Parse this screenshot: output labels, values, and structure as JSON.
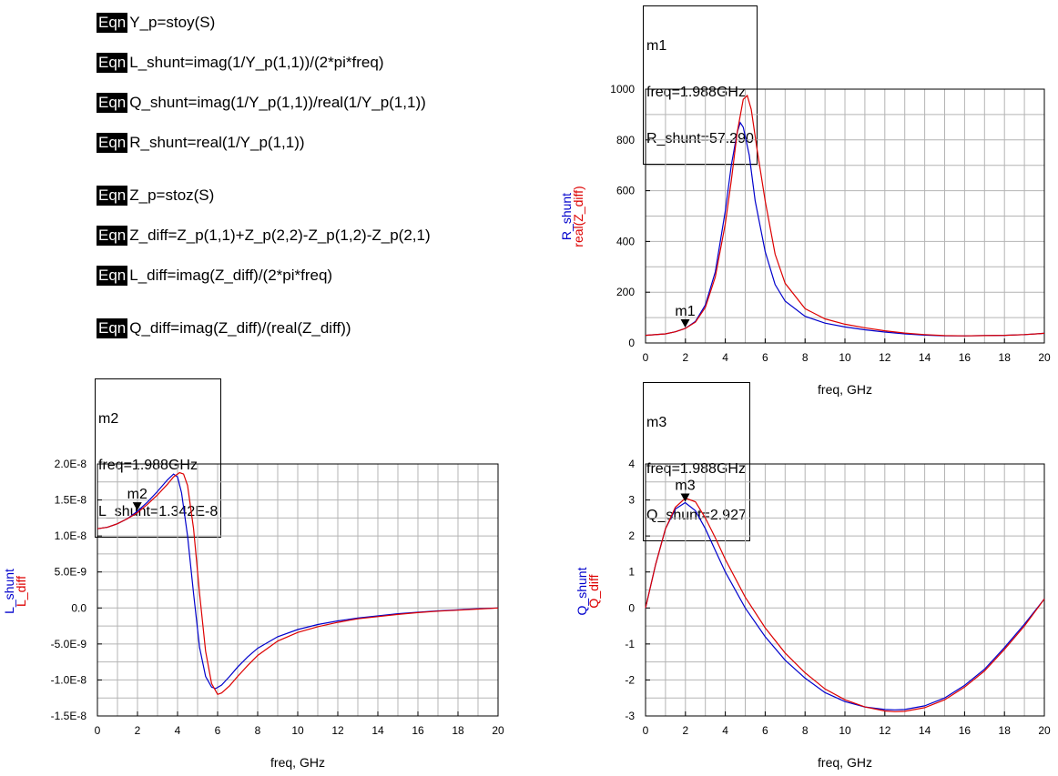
{
  "equations": [
    {
      "tag": "Eqn",
      "text": "Y_p=stoy(S)"
    },
    {
      "tag": "Eqn",
      "text": "L_shunt=imag(1/Y_p(1,1))/(2*pi*freq)"
    },
    {
      "tag": "Eqn",
      "text": "Q_shunt=imag(1/Y_p(1,1))/real(1/Y_p(1,1))"
    },
    {
      "tag": "Eqn",
      "text": "R_shunt=real(1/Y_p(1,1))"
    },
    {
      "tag": "Eqn",
      "text": "Z_p=stoz(S)"
    },
    {
      "tag": "Eqn",
      "text": "Z_diff=Z_p(1,1)+Z_p(2,2)-Z_p(1,2)-Z_p(2,1)"
    },
    {
      "tag": "Eqn",
      "text": "L_diff=imag(Z_diff)/(2*pi*freq)"
    },
    {
      "tag": "Eqn",
      "text": "Q_diff=imag(Z_diff)/(real(Z_diff))"
    }
  ],
  "markers": {
    "m1": {
      "name": "m1",
      "freq": "freq=1.988GHz",
      "value": "R_shunt=57.290"
    },
    "m2": {
      "name": "m2",
      "freq": "freq=1.988GHz",
      "value": "L_shunt=1.342E-8"
    },
    "m3": {
      "name": "m3",
      "freq": "freq=1.988GHz",
      "value": "Q_shunt=2.927"
    }
  },
  "colors": {
    "shunt": "#0000cc",
    "diff": "#dd0000",
    "grid": "#b4b4b4"
  },
  "chart_data": [
    {
      "id": "r",
      "type": "line",
      "xlabel": "freq, GHz",
      "ylabels": [
        "R_shunt",
        "real(Z_diff)"
      ],
      "xlim": [
        0,
        20
      ],
      "ylim": [
        0,
        1000
      ],
      "xticks": [
        0,
        2,
        4,
        6,
        8,
        10,
        12,
        14,
        16,
        18,
        20
      ],
      "yticks": [
        0,
        200,
        400,
        600,
        800,
        1000
      ],
      "ytick_labels": [
        "0",
        "200",
        "400",
        "600",
        "800",
        "1000"
      ],
      "grid": true,
      "marker": {
        "name": "m1",
        "x": 1.988,
        "y": 57.29
      },
      "series": [
        {
          "name": "R_shunt",
          "color": "#0000cc",
          "x": [
            0,
            1,
            1.5,
            1.988,
            2.5,
            3,
            3.5,
            4,
            4.3,
            4.6,
            4.75,
            4.9,
            5.2,
            5.5,
            6,
            6.5,
            7,
            8,
            9,
            10,
            11,
            12,
            13,
            14,
            15,
            16,
            17,
            18,
            19,
            20
          ],
          "y": [
            30,
            36,
            44,
            57,
            85,
            150,
            280,
            520,
            700,
            830,
            868,
            850,
            740,
            560,
            360,
            230,
            165,
            105,
            78,
            63,
            52,
            43,
            36,
            31,
            28,
            28,
            29,
            30,
            33,
            38
          ]
        },
        {
          "name": "real(Z_diff)",
          "color": "#dd0000",
          "x": [
            0,
            1,
            1.5,
            1.988,
            2.5,
            3,
            3.5,
            4,
            4.3,
            4.6,
            4.9,
            5.1,
            5.3,
            5.6,
            6,
            6.5,
            7,
            8,
            9,
            10,
            11,
            12,
            13,
            14,
            15,
            16,
            17,
            18,
            19,
            20
          ],
          "y": [
            30,
            36,
            44,
            57,
            82,
            140,
            260,
            470,
            640,
            830,
            960,
            975,
            920,
            760,
            560,
            350,
            235,
            135,
            95,
            74,
            60,
            48,
            39,
            33,
            29,
            28,
            29,
            30,
            33,
            38
          ]
        }
      ]
    },
    {
      "id": "l",
      "type": "line",
      "xlabel": "freq, GHz",
      "ylabels": [
        "L_shunt",
        "L_diff"
      ],
      "xlim": [
        0,
        20
      ],
      "ylim": [
        -1.5e-08,
        2e-08
      ],
      "xticks": [
        0,
        2,
        4,
        6,
        8,
        10,
        12,
        14,
        16,
        18,
        20
      ],
      "yticks": [
        -1.5e-08,
        -1e-08,
        -5e-09,
        0,
        5e-09,
        1e-08,
        1.5e-08,
        2e-08
      ],
      "ytick_labels": [
        "-1.5E-8",
        "-1.0E-8",
        "-5.0E-9",
        "0.0",
        "5.0E-9",
        "1.0E-8",
        "1.5E-8",
        "2.0E-8"
      ],
      "grid": true,
      "marker": {
        "name": "m2",
        "x": 1.988,
        "y": 1.342e-08
      },
      "series": [
        {
          "name": "L_shunt",
          "color": "#0000cc",
          "x": [
            0,
            0.5,
            1,
            1.5,
            1.988,
            2.5,
            3,
            3.5,
            3.8,
            4.0,
            4.2,
            4.5,
            4.8,
            5.1,
            5.4,
            5.7,
            5.9,
            6.2,
            6.6,
            7,
            7.5,
            8,
            9,
            10,
            11,
            12,
            13,
            14,
            15,
            16,
            17,
            18,
            19,
            20
          ],
          "y": [
            1.1e-08,
            1.12e-08,
            1.17e-08,
            1.24e-08,
            1.342e-08,
            1.47e-08,
            1.62e-08,
            1.78e-08,
            1.86e-08,
            1.82e-08,
            1.6e-08,
            1e-08,
            2e-09,
            -5.5e-09,
            -9.5e-09,
            -1.1e-08,
            -1.12e-08,
            -1.07e-08,
            -9.5e-09,
            -8.2e-09,
            -6.8e-09,
            -5.6e-09,
            -4e-09,
            -3e-09,
            -2.3e-09,
            -1.8e-09,
            -1.4e-09,
            -1.1e-09,
            -8e-10,
            -6e-10,
            -4e-10,
            -2.5e-10,
            -1e-10,
            0
          ]
        },
        {
          "name": "L_diff",
          "color": "#dd0000",
          "x": [
            0,
            0.5,
            1,
            1.5,
            1.988,
            2.5,
            3,
            3.5,
            3.8,
            4.1,
            4.3,
            4.5,
            4.8,
            5.1,
            5.4,
            5.7,
            6.0,
            6.2,
            6.6,
            7,
            7.5,
            8,
            9,
            10,
            11,
            12,
            13,
            14,
            15,
            16,
            17,
            18,
            19,
            20
          ],
          "y": [
            1.1e-08,
            1.12e-08,
            1.17e-08,
            1.24e-08,
            1.32e-08,
            1.44e-08,
            1.57e-08,
            1.72e-08,
            1.82e-08,
            1.88e-08,
            1.86e-08,
            1.7e-08,
            1.1e-08,
            2e-09,
            -6e-09,
            -1.05e-08,
            -1.2e-08,
            -1.18e-08,
            -1.08e-08,
            -9.5e-09,
            -8e-09,
            -6.6e-09,
            -4.6e-09,
            -3.4e-09,
            -2.6e-09,
            -2e-09,
            -1.5e-09,
            -1.2e-09,
            -9e-10,
            -6.5e-10,
            -4.5e-10,
            -3e-10,
            -1.5e-10,
            0
          ]
        }
      ]
    },
    {
      "id": "q",
      "type": "line",
      "xlabel": "freq, GHz",
      "ylabels": [
        "Q_shunt",
        "Q_diff"
      ],
      "xlim": [
        0,
        20
      ],
      "ylim": [
        -3,
        4
      ],
      "xticks": [
        0,
        2,
        4,
        6,
        8,
        10,
        12,
        14,
        16,
        18,
        20
      ],
      "yticks": [
        -3,
        -2,
        -1,
        0,
        1,
        2,
        3,
        4
      ],
      "ytick_labels": [
        "-3",
        "-2",
        "-1",
        "0",
        "1",
        "2",
        "3",
        "4"
      ],
      "grid": true,
      "marker": {
        "name": "m3",
        "x": 1.988,
        "y": 2.927
      },
      "series": [
        {
          "name": "Q_shunt",
          "color": "#0000cc",
          "x": [
            0,
            0.5,
            1,
            1.5,
            1.988,
            2.5,
            3,
            3.5,
            4,
            5,
            6,
            7,
            8,
            9,
            10,
            11,
            12,
            12.5,
            13,
            14,
            15,
            16,
            17,
            18,
            19,
            20
          ],
          "y": [
            0,
            1.2,
            2.2,
            2.75,
            2.927,
            2.7,
            2.2,
            1.6,
            1.0,
            0.0,
            -0.8,
            -1.45,
            -1.95,
            -2.35,
            -2.6,
            -2.75,
            -2.82,
            -2.83,
            -2.82,
            -2.72,
            -2.5,
            -2.15,
            -1.7,
            -1.1,
            -0.45,
            0.25
          ]
        },
        {
          "name": "Q_diff",
          "color": "#dd0000",
          "x": [
            0,
            0.5,
            1,
            1.5,
            2,
            2.5,
            3,
            3.5,
            4,
            5,
            6,
            7,
            8,
            9,
            10,
            11,
            12,
            12.5,
            13,
            14,
            15,
            16,
            17,
            18,
            19,
            20
          ],
          "y": [
            0,
            1.2,
            2.2,
            2.8,
            3.05,
            2.95,
            2.5,
            1.95,
            1.35,
            0.3,
            -0.55,
            -1.25,
            -1.8,
            -2.25,
            -2.55,
            -2.75,
            -2.86,
            -2.88,
            -2.87,
            -2.77,
            -2.55,
            -2.2,
            -1.75,
            -1.15,
            -0.5,
            0.25
          ]
        }
      ]
    }
  ]
}
